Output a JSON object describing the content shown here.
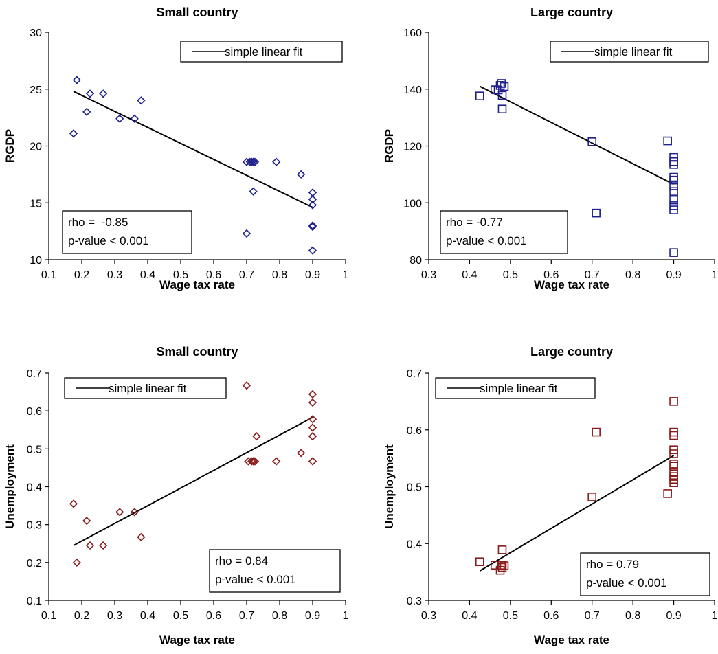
{
  "chart_data": [
    {
      "type": "scatter",
      "title": "Small country",
      "xlabel": "Wage tax rate",
      "ylabel": "RGDP",
      "xlim": [
        0.1,
        1
      ],
      "ylim": [
        10,
        30
      ],
      "xticks": [
        "0.1",
        "0.2",
        "0.3",
        "0.4",
        "0.5",
        "0.6",
        "0.7",
        "0.8",
        "0.9",
        "1"
      ],
      "yticks": [
        "10",
        "15",
        "20",
        "25",
        "30"
      ],
      "marker": "diamond",
      "color": "#1f1f8c",
      "legend": "simple linear fit",
      "stats": [
        "rho =  -0.85",
        "p-value < 0.001"
      ],
      "fit": [
        [
          0.175,
          24.8
        ],
        [
          0.9,
          14.6
        ]
      ],
      "x": [
        0.175,
        0.185,
        0.215,
        0.225,
        0.265,
        0.315,
        0.36,
        0.38,
        0.7,
        0.7,
        0.71,
        0.715,
        0.72,
        0.725,
        0.72,
        0.79,
        0.865,
        0.9,
        0.9,
        0.9,
        0.9,
        0.9,
        0.9,
        0.9
      ],
      "y": [
        21.1,
        25.8,
        23.0,
        24.6,
        24.6,
        22.4,
        22.4,
        24.0,
        18.6,
        12.3,
        18.6,
        18.6,
        18.6,
        18.6,
        16.0,
        18.6,
        17.5,
        15.9,
        15.3,
        14.8,
        12.9,
        13.0,
        12.9,
        10.8
      ]
    },
    {
      "type": "scatter",
      "title": "Large country",
      "xlabel": "Wage tax rate",
      "ylabel": "RGDP",
      "xlim": [
        0.3,
        1
      ],
      "ylim": [
        80,
        160
      ],
      "xticks": [
        "0.3",
        "0.4",
        "0.5",
        "0.6",
        "0.7",
        "0.8",
        "0.9",
        "1"
      ],
      "yticks": [
        "80",
        "100",
        "120",
        "140",
        "160"
      ],
      "marker": "square",
      "color": "#1f1f8c",
      "legend": "simple linear fit",
      "stats": [
        "rho = -0.77",
        "p-value < 0.001"
      ],
      "fit": [
        [
          0.425,
          141
        ],
        [
          0.9,
          106.5
        ]
      ],
      "x": [
        0.425,
        0.462,
        0.47,
        0.475,
        0.478,
        0.48,
        0.485,
        0.48,
        0.7,
        0.71,
        0.885,
        0.9,
        0.9,
        0.9,
        0.9,
        0.9,
        0.9,
        0.9,
        0.9,
        0.9,
        0.9,
        0.9
      ],
      "y": [
        137.6,
        139.8,
        139.7,
        141.3,
        142.0,
        137.8,
        140.9,
        133.0,
        121.5,
        96.4,
        121.8,
        116.0,
        113.5,
        109.0,
        106.0,
        104.0,
        101.0,
        99.0,
        97.5,
        114.5,
        108.0,
        82.5
      ]
    },
    {
      "type": "scatter",
      "title": "Small country",
      "xlabel": "Wage tax rate",
      "ylabel": "Unemployment",
      "xlim": [
        0.1,
        1
      ],
      "ylim": [
        0.1,
        0.7
      ],
      "xticks": [
        "0.1",
        "0.2",
        "0.3",
        "0.4",
        "0.5",
        "0.6",
        "0.7",
        "0.8",
        "0.9",
        "1"
      ],
      "yticks": [
        "0.1",
        "0.2",
        "0.3",
        "0.4",
        "0.5",
        "0.6",
        "0.7"
      ],
      "marker": "diamond",
      "color": "#8b1a1a",
      "legend": "simple linear fit",
      "stats": [
        "rho = 0.84",
        "p-value < 0.001"
      ],
      "fit": [
        [
          0.175,
          0.245
        ],
        [
          0.9,
          0.583
        ]
      ],
      "x": [
        0.175,
        0.185,
        0.215,
        0.225,
        0.265,
        0.315,
        0.36,
        0.38,
        0.7,
        0.705,
        0.72,
        0.725,
        0.715,
        0.73,
        0.79,
        0.865,
        0.9,
        0.9,
        0.9,
        0.9,
        0.9,
        0.9
      ],
      "y": [
        0.355,
        0.2,
        0.31,
        0.245,
        0.245,
        0.333,
        0.333,
        0.267,
        0.667,
        0.467,
        0.467,
        0.467,
        0.467,
        0.533,
        0.467,
        0.489,
        0.644,
        0.622,
        0.578,
        0.556,
        0.533,
        0.467
      ]
    },
    {
      "type": "scatter",
      "title": "Large country",
      "xlabel": "Wage tax rate",
      "ylabel": "Unemployment",
      "xlim": [
        0.3,
        1
      ],
      "ylim": [
        0.3,
        0.7
      ],
      "xticks": [
        "0.3",
        "0.4",
        "0.5",
        "0.6",
        "0.7",
        "0.8",
        "0.9",
        "1"
      ],
      "yticks": [
        "0.3",
        "0.4",
        "0.5",
        "0.6",
        "0.7"
      ],
      "marker": "square",
      "color": "#8b1a1a",
      "legend": "simple linear fit",
      "stats": [
        "rho = 0.79",
        "p-value < 0.001"
      ],
      "fit": [
        [
          0.425,
          0.352
        ],
        [
          0.9,
          0.555
        ]
      ],
      "x": [
        0.425,
        0.462,
        0.475,
        0.478,
        0.48,
        0.485,
        0.48,
        0.7,
        0.71,
        0.885,
        0.9,
        0.9,
        0.9,
        0.9,
        0.9,
        0.9,
        0.9,
        0.9,
        0.9,
        0.9,
        0.9
      ],
      "y": [
        0.368,
        0.362,
        0.353,
        0.362,
        0.389,
        0.361,
        0.358,
        0.482,
        0.596,
        0.488,
        0.65,
        0.596,
        0.59,
        0.565,
        0.558,
        0.54,
        0.536,
        0.525,
        0.518,
        0.513,
        0.507
      ]
    }
  ]
}
